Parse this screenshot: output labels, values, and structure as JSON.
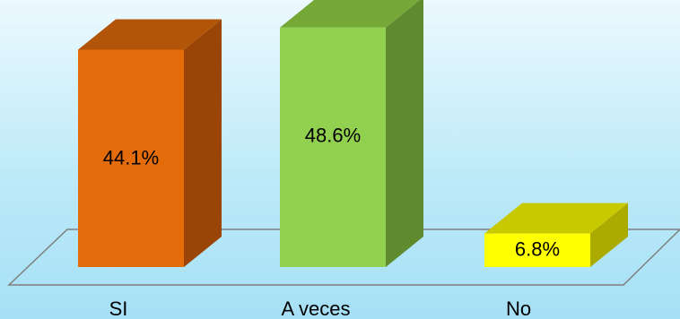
{
  "chart_data": {
    "type": "bar",
    "categories": [
      "SI",
      "A veces",
      "No"
    ],
    "values": [
      44.1,
      48.6,
      6.8
    ],
    "value_labels": [
      "44.1%",
      "48.6%",
      "6.8%"
    ],
    "colors": {
      "front": [
        "#e46c0a",
        "#92d050",
        "#ffff00"
      ],
      "side": [
        "#9a4506",
        "#5f8a2e",
        "#aaaa00"
      ],
      "top": [
        "#b35508",
        "#76a838",
        "#c9c900"
      ]
    },
    "ylim": [
      0,
      50
    ],
    "grid": false,
    "legend": "none"
  }
}
